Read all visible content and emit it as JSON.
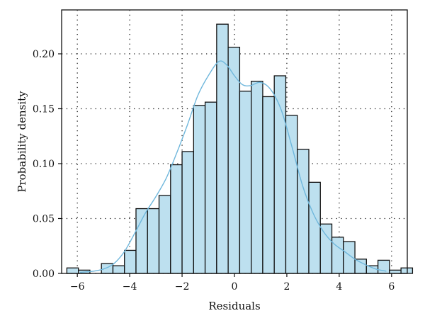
{
  "chart_data": {
    "type": "bar",
    "subtype": "histogram-with-density-curve",
    "title": "",
    "xlabel": "Residuals",
    "ylabel": "Probability density",
    "xlim": [
      -6.6,
      6.6
    ],
    "ylim": [
      0,
      0.24
    ],
    "xticks": [
      -6,
      -4,
      -2,
      0,
      2,
      4,
      6
    ],
    "xtick_labels": [
      "−6",
      "−4",
      "−2",
      "0",
      "2",
      "4",
      "6"
    ],
    "yticks": [
      0.0,
      0.05,
      0.1,
      0.15,
      0.2
    ],
    "ytick_labels": [
      "0.00",
      "0.05",
      "0.10",
      "0.15",
      "0.20"
    ],
    "grid": true,
    "bin_width": 0.44,
    "bin_edges": [
      -6.4,
      -5.96,
      -5.52,
      -5.08,
      -4.64,
      -4.2,
      -3.76,
      -3.32,
      -2.88,
      -2.44,
      -2.0,
      -1.56,
      -1.12,
      -0.68,
      -0.24,
      0.2,
      0.64,
      1.08,
      1.52,
      1.96,
      2.4,
      2.84,
      3.28,
      3.72,
      4.16,
      4.6,
      5.04,
      5.48,
      5.92,
      6.36
    ],
    "values": [
      0.005,
      0.003,
      0.0,
      0.009,
      0.007,
      0.021,
      0.059,
      0.059,
      0.071,
      0.099,
      0.111,
      0.153,
      0.156,
      0.227,
      0.206,
      0.166,
      0.175,
      0.161,
      0.18,
      0.144,
      0.113,
      0.083,
      0.045,
      0.033,
      0.029,
      0.013,
      0.007,
      0.012,
      0.003,
      0.005
    ],
    "density_curve": {
      "x": [
        -5.9,
        -5.4,
        -5.0,
        -4.6,
        -4.2,
        -3.8,
        -3.4,
        -3.0,
        -2.6,
        -2.2,
        -1.8,
        -1.4,
        -1.0,
        -0.6,
        -0.3,
        0.0,
        0.3,
        0.6,
        1.0,
        1.4,
        1.8,
        2.2,
        2.6,
        3.0,
        3.4,
        3.8,
        4.2,
        4.6,
        5.0,
        5.4,
        5.8
      ],
      "y": [
        0.001,
        0.002,
        0.004,
        0.009,
        0.02,
        0.037,
        0.055,
        0.07,
        0.087,
        0.11,
        0.135,
        0.162,
        0.18,
        0.193,
        0.19,
        0.18,
        0.172,
        0.171,
        0.174,
        0.167,
        0.148,
        0.115,
        0.08,
        0.055,
        0.038,
        0.027,
        0.02,
        0.013,
        0.008,
        0.004,
        0.002
      ]
    },
    "colors": {
      "bar_fill": "#bde0ef",
      "bar_edge": "#111111",
      "curve": "#6fb7dc"
    }
  }
}
